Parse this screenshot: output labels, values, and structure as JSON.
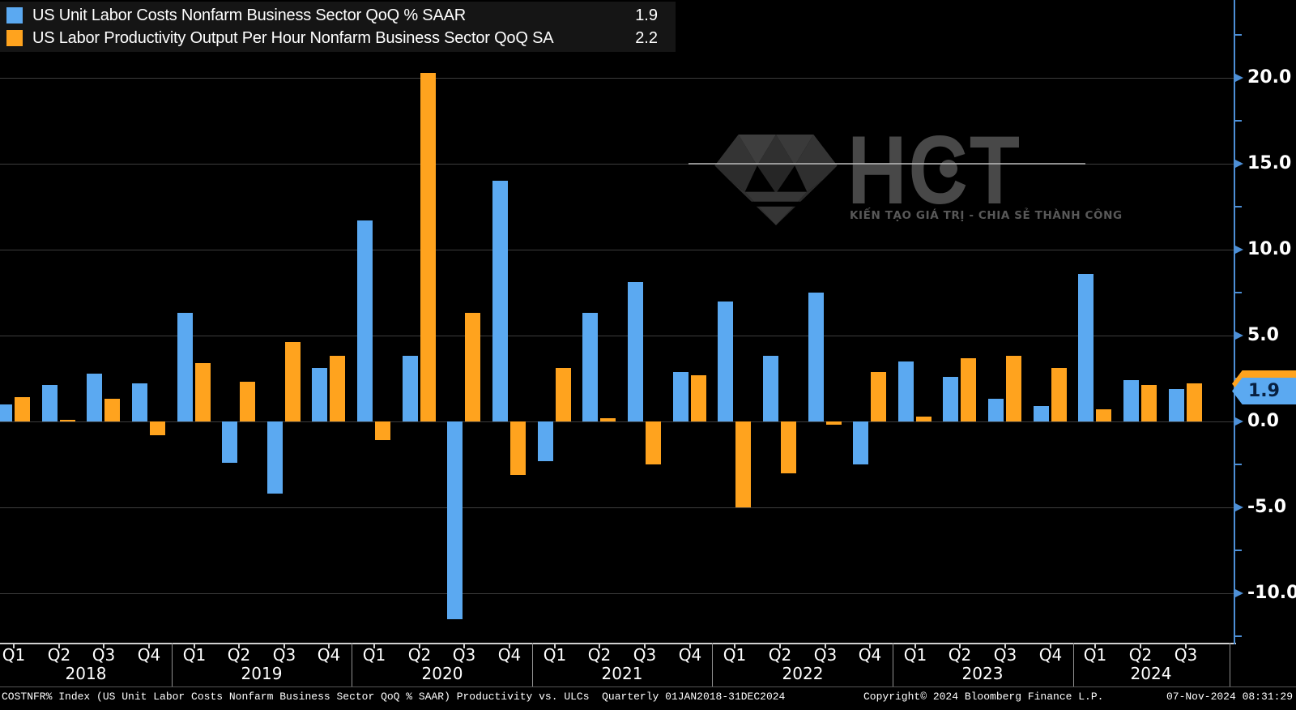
{
  "legend": {
    "series": [
      {
        "label": "US Unit Labor Costs Nonfarm Business Sector QoQ % SAAR",
        "value": "1.9",
        "color": "#5BA9F1"
      },
      {
        "label": "US Labor Productivity Output Per Hour Nonfarm Business Sector QoQ SA",
        "value": "2.2",
        "color": "#FFA31E"
      }
    ]
  },
  "chart_data": {
    "type": "bar",
    "title": "Productivity vs. ULCs",
    "categories": [
      "2018 Q1",
      "2018 Q2",
      "2018 Q3",
      "2018 Q4",
      "2019 Q1",
      "2019 Q2",
      "2019 Q3",
      "2019 Q4",
      "2020 Q1",
      "2020 Q2",
      "2020 Q3",
      "2020 Q4",
      "2021 Q1",
      "2021 Q2",
      "2021 Q3",
      "2021 Q4",
      "2022 Q1",
      "2022 Q2",
      "2022 Q3",
      "2022 Q4",
      "2023 Q1",
      "2023 Q2",
      "2023 Q3",
      "2023 Q4",
      "2024 Q1",
      "2024 Q2",
      "2024 Q3"
    ],
    "quarter_labels": [
      "Q1",
      "Q2",
      "Q3",
      "Q4",
      "Q1",
      "Q2",
      "Q3",
      "Q4",
      "Q1",
      "Q2",
      "Q3",
      "Q4",
      "Q1",
      "Q2",
      "Q3",
      "Q4",
      "Q1",
      "Q2",
      "Q3",
      "Q4",
      "Q1",
      "Q2",
      "Q3",
      "Q4",
      "Q1",
      "Q2",
      "Q3"
    ],
    "years": [
      {
        "label": "2018",
        "quarters": 4
      },
      {
        "label": "2019",
        "quarters": 4
      },
      {
        "label": "2020",
        "quarters": 4
      },
      {
        "label": "2021",
        "quarters": 4
      },
      {
        "label": "2022",
        "quarters": 4
      },
      {
        "label": "2023",
        "quarters": 4
      },
      {
        "label": "2024",
        "quarters": 3
      }
    ],
    "series": [
      {
        "name": "US Unit Labor Costs Nonfarm Business Sector QoQ % SAAR",
        "color": "#5BA9F1",
        "values": [
          1.0,
          2.1,
          2.8,
          2.2,
          6.3,
          -2.4,
          -4.2,
          3.1,
          11.7,
          3.8,
          -11.5,
          14.0,
          -2.3,
          6.3,
          8.1,
          2.9,
          7.0,
          3.8,
          7.5,
          -2.5,
          3.5,
          2.6,
          1.3,
          0.9,
          8.6,
          2.4,
          1.9
        ]
      },
      {
        "name": "US Labor Productivity Output Per Hour Nonfarm Business Sector QoQ SA",
        "color": "#FFA31E",
        "values": [
          1.4,
          0.1,
          1.3,
          -0.8,
          3.4,
          2.3,
          4.6,
          3.8,
          -1.1,
          20.3,
          6.3,
          -3.1,
          3.1,
          0.2,
          -2.5,
          2.7,
          -5.0,
          -3.0,
          -0.2,
          2.9,
          0.3,
          3.7,
          3.8,
          3.1,
          0.7,
          2.1,
          2.2
        ]
      }
    ],
    "yticks": [
      20.0,
      15.0,
      10.0,
      5.0,
      0.0,
      -5.0,
      -10.0
    ],
    "ytick_labels": [
      "20.0",
      "15.0",
      "10.0",
      "5.0",
      "0.0",
      "-5.0",
      "-10.0"
    ],
    "minor_yticks": [
      22.5,
      17.5,
      12.5,
      7.5,
      2.5,
      -2.5,
      -7.5,
      -12.5
    ],
    "ylim": [
      -13.0,
      22.7
    ],
    "grid": true,
    "legend_position": "top-left",
    "last_values": {
      "ulc": "1.9",
      "productivity": "2.2"
    }
  },
  "y_axis": {
    "badges": [
      {
        "value": "1.9",
        "color": "#5BA9F1",
        "text_color": "#082040"
      },
      {
        "value": "2.2",
        "color": "#FFA31E",
        "text_color": "#3a2400"
      }
    ]
  },
  "watermark": {
    "text": "HCT",
    "slogan": "KIẾN TẠO GIÁ TRỊ - CHIA SẺ THÀNH CÔNG",
    "icon": "diamond-icon"
  },
  "footer": {
    "left": "COSTNFR% Index (US Unit Labor Costs Nonfarm Business Sector QoQ % SAAR) Productivity vs. ULCs  Quarterly 01JAN2018-31DEC2024",
    "copyright": "Copyright© 2024 Bloomberg Finance L.P.",
    "datetime": "07-Nov-2024 08:31:29"
  }
}
